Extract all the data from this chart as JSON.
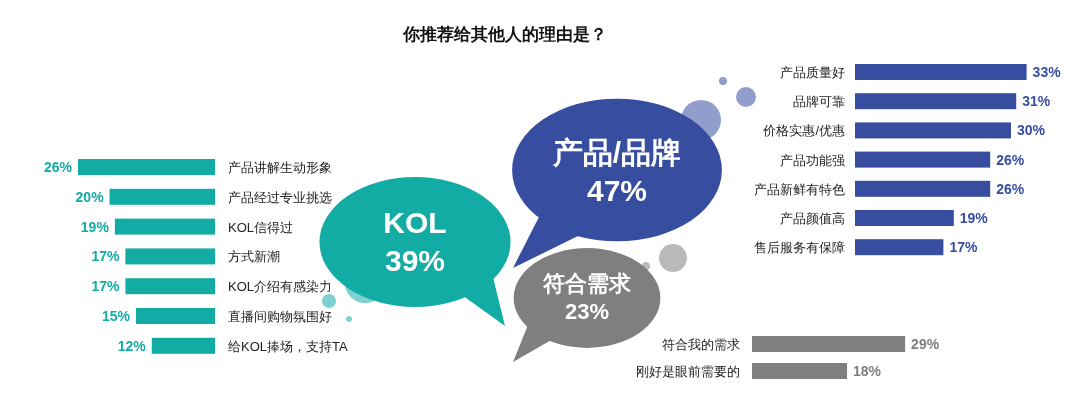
{
  "chart_data": [
    {
      "type": "other",
      "title": "你推荐给其他人的理由是？",
      "categories": [
        "KOL",
        "产品/品牌",
        "符合需求"
      ],
      "values": [
        39,
        47,
        23
      ],
      "value_labels": [
        "39%",
        "47%",
        "23%"
      ],
      "colors": [
        "#13aca5",
        "#374ea0",
        "#7f7f7f"
      ]
    },
    {
      "type": "bar",
      "orientation": "horizontal",
      "categories": [
        "产品讲解生动形象",
        "产品经过专业挑选",
        "KOL信得过",
        "方式新潮",
        "KOL介绍有感染力",
        "直播间购物氛围好",
        "给KOL捧场，支持TA"
      ],
      "values": [
        26,
        20,
        19,
        17,
        17,
        15,
        12
      ],
      "value_labels": [
        "26%",
        "20%",
        "19%",
        "17%",
        "17%",
        "15%",
        "12%"
      ],
      "color": "#13aca5"
    },
    {
      "type": "bar",
      "orientation": "horizontal",
      "categories": [
        "产品质量好",
        "品牌可靠",
        "价格实惠/优惠",
        "产品功能强",
        "产品新鲜有特色",
        "产品颜值高",
        "售后服务有保障"
      ],
      "values": [
        33,
        31,
        30,
        26,
        26,
        19,
        17
      ],
      "value_labels": [
        "33%",
        "31%",
        "30%",
        "26%",
        "26%",
        "19%",
        "17%"
      ],
      "color": "#374ea0"
    },
    {
      "type": "bar",
      "orientation": "horizontal",
      "categories": [
        "符合我的需求",
        "刚好是眼前需要的"
      ],
      "values": [
        29,
        18
      ],
      "value_labels": [
        "29%",
        "18%"
      ],
      "color": "#7f7f7f"
    }
  ]
}
